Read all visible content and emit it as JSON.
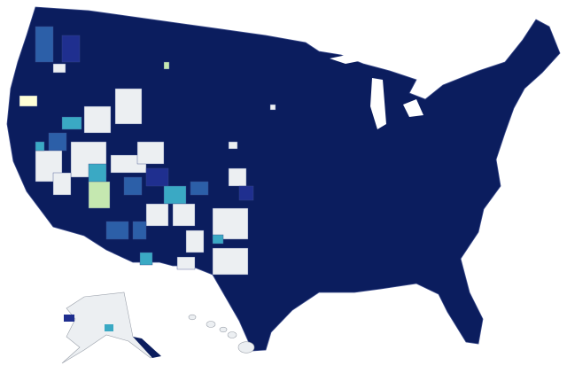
{
  "map": {
    "palette": [
      "#0b1d5e",
      "#1f2f8f",
      "#2c5fa8",
      "#3aa9c4",
      "#c5e8b0",
      "#ffffd6",
      "#eceff2"
    ],
    "border": "#3a4a8a"
  }
}
